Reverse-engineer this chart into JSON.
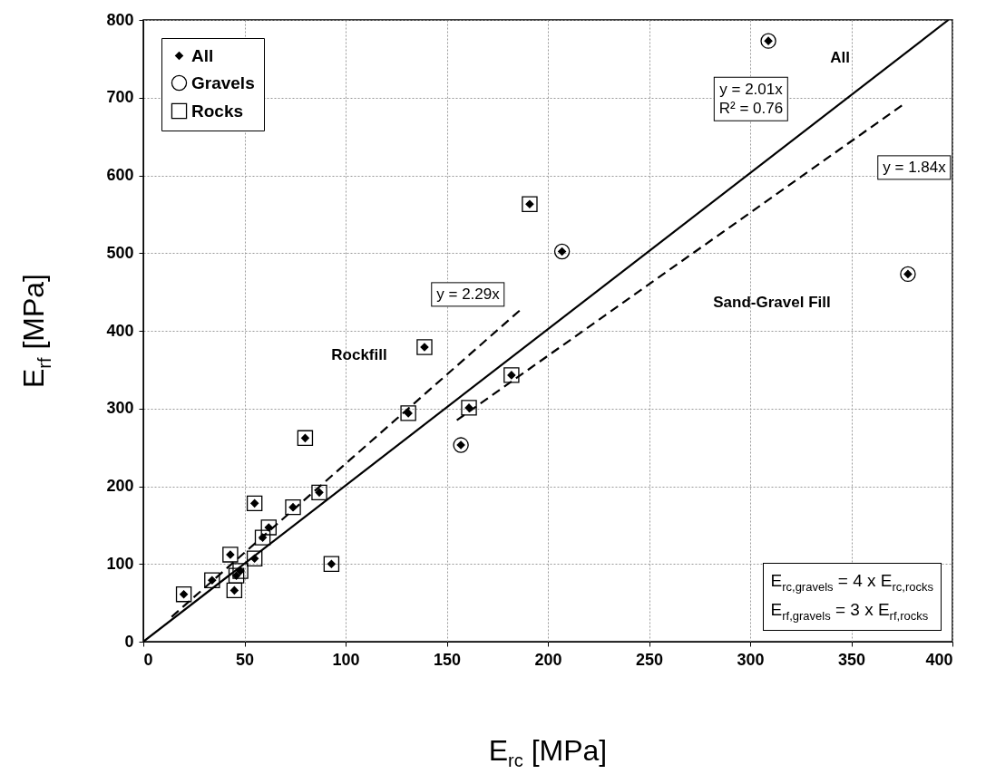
{
  "chart_data": {
    "type": "scatter",
    "xlabel": "E$_{rc}$ [MPa]",
    "ylabel": "E$_{rf}$ [MPa]",
    "xlim": [
      0,
      400
    ],
    "xticks": [
      0,
      50,
      100,
      150,
      200,
      250,
      300,
      350,
      400
    ],
    "ylim": [
      0,
      800
    ],
    "yticks": [
      0,
      100,
      200,
      300,
      400,
      500,
      600,
      700,
      800
    ],
    "grid": true,
    "legend": "top left",
    "series": [
      {
        "name": "Gravels",
        "color": "#000000",
        "marker": "circle",
        "x": [
          157,
          207,
          309,
          378
        ],
        "values": [
          253,
          502,
          773,
          473
        ]
      },
      {
        "name": "Rocks",
        "color": "#000000",
        "marker": "square",
        "x": [
          20,
          34,
          43,
          45,
          48,
          46,
          55,
          55,
          59,
          62,
          74,
          80,
          87,
          93,
          131,
          139,
          161,
          182,
          191
        ],
        "values": [
          61,
          79,
          112,
          66,
          91,
          85,
          107,
          178,
          134,
          147,
          173,
          262,
          192,
          100,
          294,
          379,
          301,
          343,
          563
        ]
      },
      {
        "name": "All",
        "color": "#000000",
        "marker": "diamond",
        "x": [
          20,
          34,
          43,
          45,
          48,
          46,
          55,
          55,
          59,
          62,
          74,
          80,
          87,
          93,
          131,
          139,
          161,
          182,
          191,
          157,
          207,
          309,
          378
        ],
        "values": [
          61,
          79,
          112,
          66,
          91,
          85,
          107,
          178,
          134,
          147,
          173,
          262,
          192,
          100,
          294,
          379,
          301,
          343,
          563,
          253,
          502,
          773,
          473
        ]
      },
      {
        "type": "line",
        "color": "#000000",
        "line_style": "solid",
        "x": [
          0,
          398
        ],
        "values": [
          0,
          800
        ]
      },
      {
        "type": "line",
        "color": "#000000",
        "line_style": "dashed",
        "x": [
          155,
          375
        ],
        "values": [
          285,
          690
        ]
      },
      {
        "type": "line",
        "color": "#000000",
        "line_style": "dashed",
        "x": [
          14,
          186
        ],
        "values": [
          32,
          426
        ]
      }
    ],
    "annotations": [
      "All",
      "y = 2.01x\nR² = 0.76",
      "y = 1.84x",
      "Sand-Gravel Fill",
      "y = 2.29x",
      "Rockfill",
      "E$_{rc,gravels}$ = 4 x E$_{rc,rocks}$",
      "E$_{rf,gravels}$ = 3 x E$_{rf,rocks}$"
    ]
  }
}
